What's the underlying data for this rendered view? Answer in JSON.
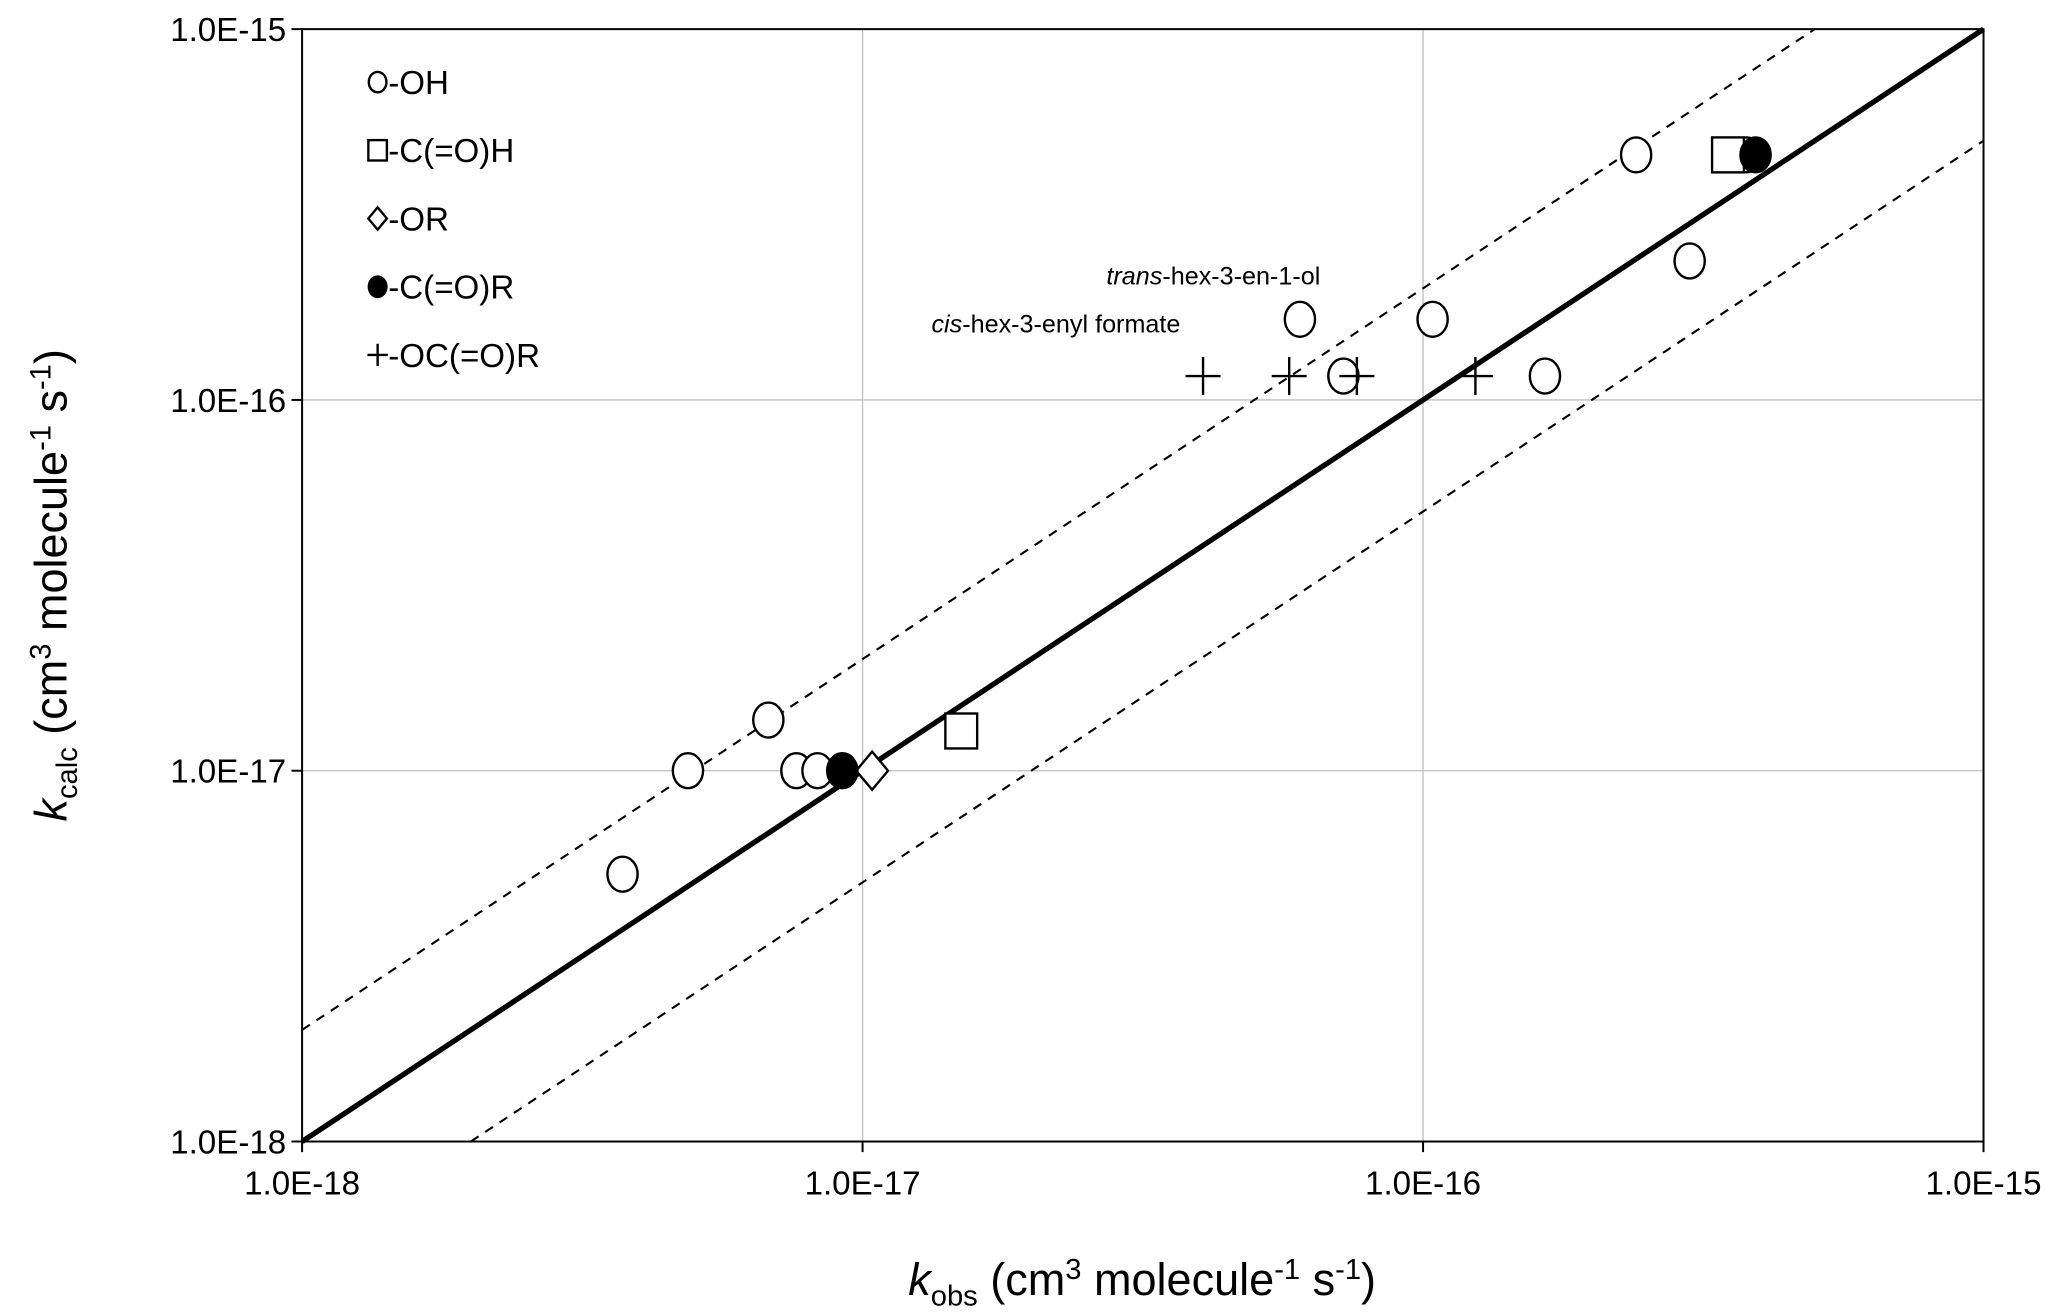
{
  "chart_data": {
    "type": "scatter",
    "xscale": "log",
    "yscale": "log",
    "xlim": [
      1e-18,
      1e-15
    ],
    "ylim": [
      1e-18,
      1e-15
    ],
    "xlabel": {
      "k": "k",
      "sub": "obs",
      "rest1": " (cm",
      "sup1": "3",
      "rest2": " molecule",
      "sup2": "-1",
      "rest3": " s",
      "sup3": "-1",
      "rest4": ")"
    },
    "ylabel": {
      "k": "k",
      "sub": "calc",
      "rest1": " (cm",
      "sup1": "3",
      "rest2": " molecule",
      "sup2": "-1",
      "rest3": " s",
      "sup3": "-1",
      "rest4": ")"
    },
    "xticks": [
      "1.0E-18",
      "1.0E-17",
      "1.0E-16",
      "1.0E-15"
    ],
    "yticks": [
      "1.0E-18",
      "1.0E-17",
      "1.0E-16",
      "1.0E-15"
    ],
    "grid": true,
    "legend_position": "top-left",
    "reference_lines": [
      {
        "name": "1:1",
        "factor": 1,
        "style": "solid"
      },
      {
        "name": "2:1",
        "factor": 2,
        "style": "dashed"
      },
      {
        "name": "1:2",
        "factor": 0.5,
        "style": "dashed"
      }
    ],
    "series": [
      {
        "name": "-OH",
        "marker": "open-circle",
        "points": [
          [
            3.73e-18,
            5.26e-18
          ],
          [
            4.88e-18,
            1e-17
          ],
          [
            6.79e-18,
            1.37e-17
          ],
          [
            7.62e-18,
            1e-17
          ],
          [
            8.31e-18,
            1e-17
          ],
          [
            6.03e-17,
            1.65e-16
          ],
          [
            7.21e-17,
            1.16e-16
          ],
          [
            1.04e-16,
            1.65e-16
          ],
          [
            1.65e-16,
            1.16e-16
          ],
          [
            2.4e-16,
            4.58e-16
          ],
          [
            2.99e-16,
            2.37e-16
          ],
          [
            3.78e-16,
            4.58e-16
          ]
        ]
      },
      {
        "name": "-C(=O)H",
        "marker": "open-square",
        "points": [
          [
            1.5e-17,
            1.28e-17
          ],
          [
            3.5e-16,
            4.58e-16
          ]
        ]
      },
      {
        "name": "-OR",
        "marker": "open-diamond",
        "points": [
          [
            1.04e-17,
            1e-17
          ]
        ]
      },
      {
        "name": "-C(=O)R",
        "marker": "filled-circle",
        "points": [
          [
            9.2e-18,
            1e-17
          ],
          [
            3.92e-16,
            4.58e-16
          ]
        ]
      },
      {
        "name": "-OC(=O)R",
        "marker": "plus",
        "points": [
          [
            4.05e-17,
            1.16e-16
          ],
          [
            5.77e-17,
            1.16e-16
          ],
          [
            7.62e-17,
            1.16e-16
          ],
          [
            1.24e-16,
            1.16e-16
          ]
        ]
      }
    ],
    "annotations": [
      {
        "italic": "trans",
        "text": "-hex-3-en-1-ol"
      },
      {
        "italic": "cis",
        "text": "-hex-3-enyl formate"
      }
    ]
  }
}
